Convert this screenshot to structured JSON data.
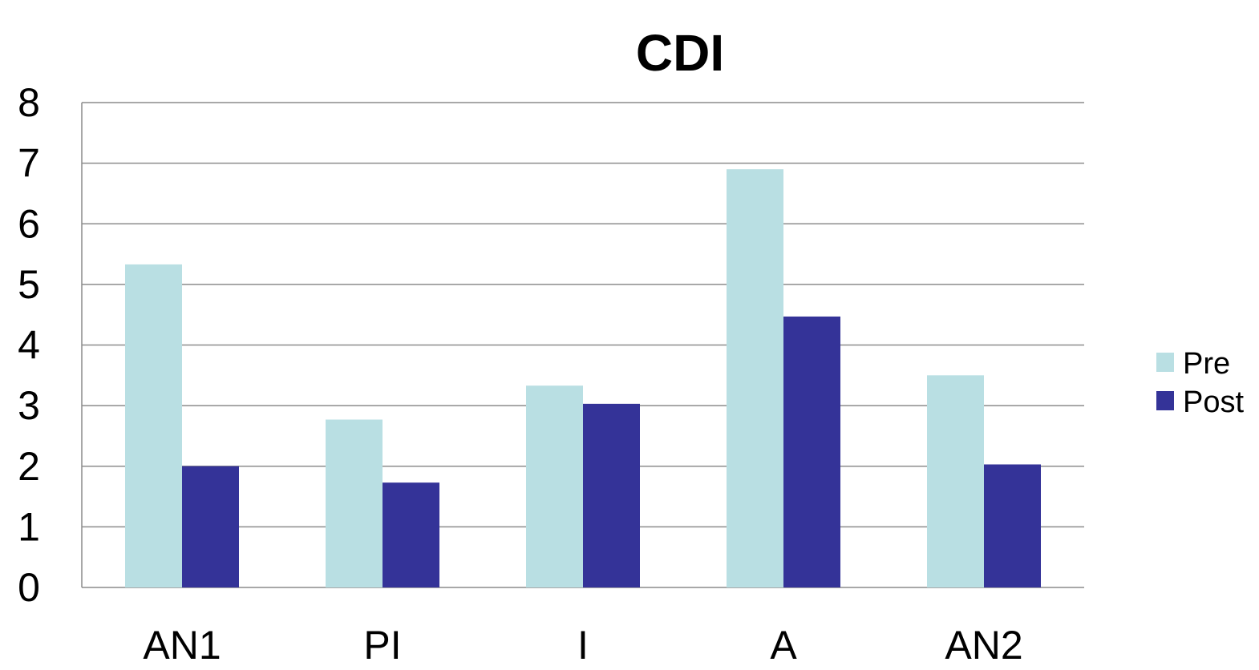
{
  "chart_data": {
    "type": "bar",
    "title": "CDI",
    "xlabel": "",
    "ylabel": "",
    "categories": [
      "AN1",
      "PI",
      "I",
      "A",
      "AN2"
    ],
    "series": [
      {
        "name": "Pre",
        "values": [
          5.33,
          2.77,
          3.33,
          6.9,
          3.5
        ],
        "color": "#b9dfe3"
      },
      {
        "name": "Post",
        "values": [
          2.0,
          1.73,
          3.03,
          4.47,
          2.03
        ],
        "color": "#343398"
      }
    ],
    "ylim": [
      0,
      8
    ],
    "yticks": [
      "0",
      "1",
      "2",
      "3",
      "4",
      "5",
      "6",
      "7",
      "8"
    ],
    "grid": true,
    "legend_position": "right"
  }
}
